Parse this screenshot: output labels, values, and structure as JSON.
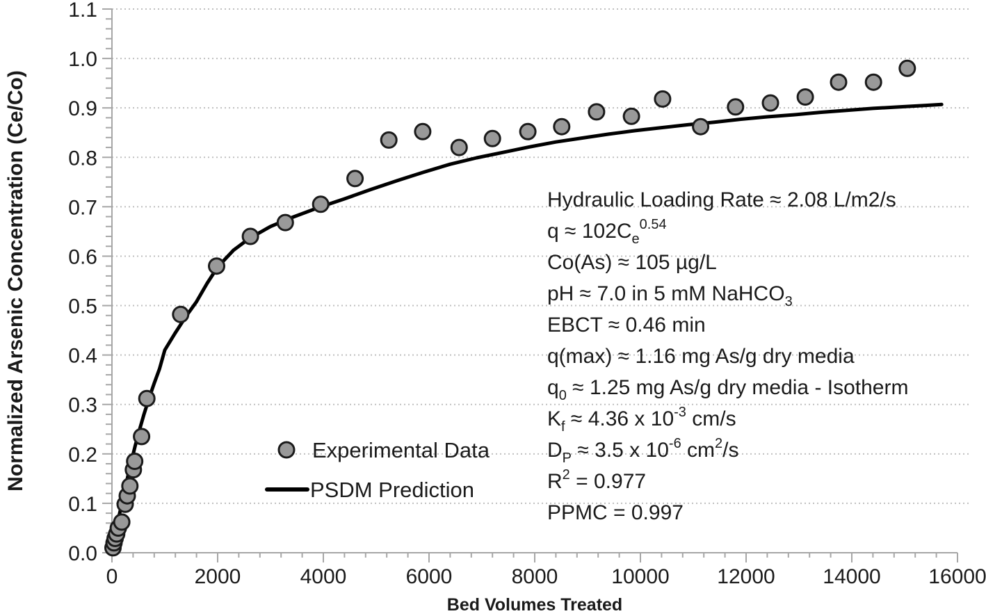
{
  "chart_data": {
    "type": "scatter",
    "title": "",
    "xlabel": "Bed Volumes Treated",
    "ylabel": "Normalized Arsenic Concentration (Ce/Co)",
    "xlim": [
      0,
      16000
    ],
    "ylim": [
      0.0,
      1.1
    ],
    "x_major_tick_step": 2000,
    "x_minor_tick_step": 400,
    "y_major_tick_step": 0.1,
    "y_minor_tick_step": 0.02,
    "x_tick_labels": [
      "0",
      "2000",
      "4000",
      "6000",
      "8000",
      "10000",
      "12000",
      "14000",
      "16000"
    ],
    "y_tick_labels": [
      "0.0",
      "0.1",
      "0.2",
      "0.3",
      "0.4",
      "0.5",
      "0.6",
      "0.7",
      "0.8",
      "0.9",
      "1.0",
      "1.1"
    ],
    "grid": "horizontal dotted gridlines at every 0.1",
    "legend_position": "inside plot, left-center",
    "series": [
      {
        "name": "Experimental Data",
        "type": "scatter",
        "marker": "circle",
        "points": [
          [
            20,
            0.01
          ],
          [
            40,
            0.02
          ],
          [
            60,
            0.029
          ],
          [
            90,
            0.038
          ],
          [
            120,
            0.05
          ],
          [
            185,
            0.062
          ],
          [
            250,
            0.098
          ],
          [
            290,
            0.115
          ],
          [
            340,
            0.135
          ],
          [
            405,
            0.168
          ],
          [
            430,
            0.185
          ],
          [
            560,
            0.235
          ],
          [
            660,
            0.312
          ],
          [
            1300,
            0.482
          ],
          [
            1980,
            0.58
          ],
          [
            2620,
            0.64
          ],
          [
            3280,
            0.668
          ],
          [
            3950,
            0.705
          ],
          [
            4600,
            0.757
          ],
          [
            5240,
            0.835
          ],
          [
            5880,
            0.852
          ],
          [
            6570,
            0.82
          ],
          [
            7200,
            0.838
          ],
          [
            7870,
            0.852
          ],
          [
            8510,
            0.862
          ],
          [
            9170,
            0.892
          ],
          [
            9830,
            0.883
          ],
          [
            10420,
            0.918
          ],
          [
            11140,
            0.862
          ],
          [
            11800,
            0.902
          ],
          [
            12460,
            0.91
          ],
          [
            13120,
            0.922
          ],
          [
            13750,
            0.952
          ],
          [
            14410,
            0.952
          ],
          [
            15050,
            0.98
          ]
        ]
      },
      {
        "name": "PSDM Prediction",
        "type": "line",
        "points": [
          [
            0,
            0.0
          ],
          [
            60,
            0.035
          ],
          [
            120,
            0.068
          ],
          [
            200,
            0.105
          ],
          [
            280,
            0.145
          ],
          [
            360,
            0.182
          ],
          [
            440,
            0.216
          ],
          [
            520,
            0.248
          ],
          [
            600,
            0.278
          ],
          [
            700,
            0.312
          ],
          [
            800,
            0.343
          ],
          [
            900,
            0.372
          ],
          [
            1000,
            0.41
          ],
          [
            1200,
            0.445
          ],
          [
            1400,
            0.478
          ],
          [
            1600,
            0.508
          ],
          [
            1800,
            0.545
          ],
          [
            2000,
            0.578
          ],
          [
            2300,
            0.612
          ],
          [
            2600,
            0.636
          ],
          [
            3000,
            0.66
          ],
          [
            3400,
            0.678
          ],
          [
            3900,
            0.698
          ],
          [
            4400,
            0.716
          ],
          [
            4900,
            0.735
          ],
          [
            5400,
            0.753
          ],
          [
            5900,
            0.77
          ],
          [
            6400,
            0.786
          ],
          [
            6900,
            0.799
          ],
          [
            7400,
            0.81
          ],
          [
            7900,
            0.821
          ],
          [
            8400,
            0.831
          ],
          [
            8900,
            0.839
          ],
          [
            9400,
            0.847
          ],
          [
            9900,
            0.854
          ],
          [
            10400,
            0.86
          ],
          [
            10900,
            0.866
          ],
          [
            11400,
            0.871
          ],
          [
            11900,
            0.877
          ],
          [
            12400,
            0.882
          ],
          [
            12900,
            0.886
          ],
          [
            13400,
            0.891
          ],
          [
            13900,
            0.895
          ],
          [
            14400,
            0.899
          ],
          [
            14900,
            0.902
          ],
          [
            15400,
            0.905
          ],
          [
            15700,
            0.907
          ]
        ]
      }
    ],
    "annotation": {
      "lines": [
        [
          {
            "t": "Hydraulic Loading Rate ≈ 2.08 L/m2/s"
          }
        ],
        [
          {
            "t": "q ≈ 102C"
          },
          {
            "t": "e",
            "v": "sub"
          },
          {
            "t": "0.54",
            "v": "sup"
          }
        ],
        [
          {
            "t": "Co(As) ≈ 105 µg/L"
          }
        ],
        [
          {
            "t": "pH ≈ 7.0 in 5 mM NaHCO"
          },
          {
            "t": "3",
            "v": "sub"
          }
        ],
        [
          {
            "t": "EBCT ≈ 0.46 min"
          }
        ],
        [
          {
            "t": "q(max) ≈ 1.16 mg As/g dry media"
          }
        ],
        [
          {
            "t": "q"
          },
          {
            "t": "0",
            "v": "sub"
          },
          {
            "t": " ≈ 1.25 mg As/g dry media - Isotherm"
          }
        ],
        [
          {
            "t": "K"
          },
          {
            "t": "f",
            "v": "sub"
          },
          {
            "t": " ≈ 4.36 x 10"
          },
          {
            "t": "-3",
            "v": "sup"
          },
          {
            "t": " cm/s"
          }
        ],
        [
          {
            "t": "D"
          },
          {
            "t": "P",
            "v": "sub"
          },
          {
            "t": " ≈ 3.5 x 10"
          },
          {
            "t": "-6",
            "v": "sup"
          },
          {
            "t": " cm"
          },
          {
            "t": "2",
            "v": "sup"
          },
          {
            "t": "/s"
          }
        ],
        [
          {
            "t": "R"
          },
          {
            "t": "2",
            "v": "sup"
          },
          {
            "t": " = 0.977"
          }
        ],
        [
          {
            "t": "PPMC = 0.997"
          }
        ]
      ]
    },
    "colors": {
      "marker_fill": "#999999",
      "marker_stroke": "#1a1a1a",
      "prediction_line": "#000000",
      "axis": "#a6a6a6",
      "gridline": "#bfbfbf",
      "text": "#1a1a1a",
      "background": "#ffffff"
    }
  }
}
